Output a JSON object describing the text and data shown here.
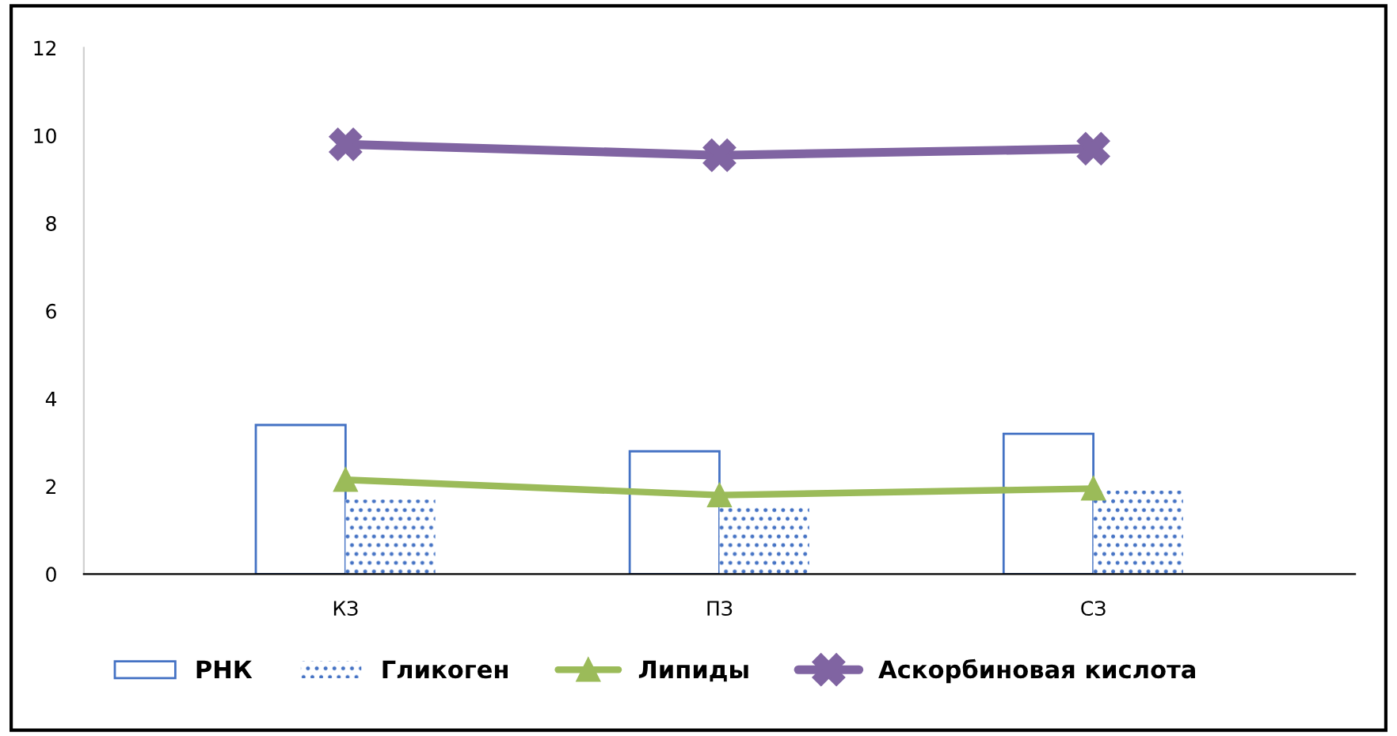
{
  "chart_data": {
    "type": "bar",
    "categories": [
      "КЗ",
      "ПЗ",
      "СЗ"
    ],
    "series": [
      {
        "name": "РНК",
        "color": "#4472c4",
        "values": [
          3.4,
          2.8,
          3.2
        ]
      },
      {
        "name": "Гликоген",
        "color": "#4472c4",
        "values": [
          1.7,
          1.55,
          1.9
        ]
      },
      {
        "name": "Липиды",
        "type": "line",
        "color": "#9bbb59",
        "marker": "triangle",
        "values": [
          2.15,
          1.8,
          1.95
        ]
      },
      {
        "name": "Аскорбиновая кислота",
        "type": "line",
        "color": "#8064a2",
        "marker": "cross",
        "values": [
          9.8,
          9.55,
          9.7
        ]
      }
    ],
    "ylim": [
      0,
      12
    ],
    "yticks": [
      0,
      2,
      4,
      6,
      8,
      10,
      12
    ],
    "grid": false,
    "legend": "bottom",
    "line_style": "solid"
  }
}
